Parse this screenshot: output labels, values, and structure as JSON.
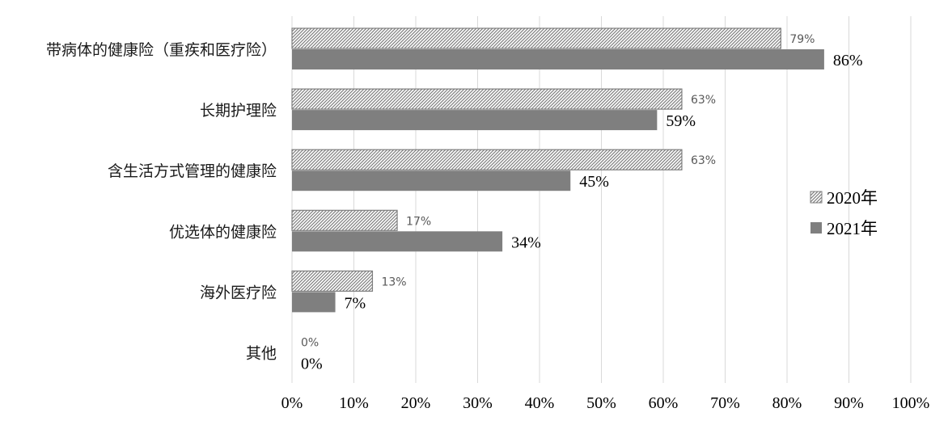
{
  "chart_data": {
    "type": "bar",
    "orientation": "horizontal",
    "categories": [
      "带病体的健康险（重疾和医疗险）",
      "长期护理险",
      "含生活方式管理的健康险",
      "优选体的健康险",
      "海外医疗险",
      "其他"
    ],
    "series": [
      {
        "name": "2020年",
        "values": [
          79,
          63,
          63,
          17,
          13,
          0
        ],
        "labels": [
          "79%",
          "63%",
          "63%",
          "17%",
          "13%",
          "0%"
        ],
        "fill": "hatched",
        "color": "#7f7f7f"
      },
      {
        "name": "2021年",
        "values": [
          86,
          59,
          45,
          34,
          7,
          0
        ],
        "labels": [
          "86%",
          "59%",
          "45%",
          "34%",
          "7%",
          "0%"
        ],
        "fill": "solid",
        "color": "#7f7f7f"
      }
    ],
    "xlim": [
      0,
      100
    ],
    "x_ticks": [
      "0%",
      "10%",
      "20%",
      "30%",
      "40%",
      "50%",
      "60%",
      "70%",
      "80%",
      "90%",
      "100%"
    ],
    "grid": true,
    "legend": "right",
    "title": "",
    "xlabel": "",
    "ylabel": ""
  }
}
